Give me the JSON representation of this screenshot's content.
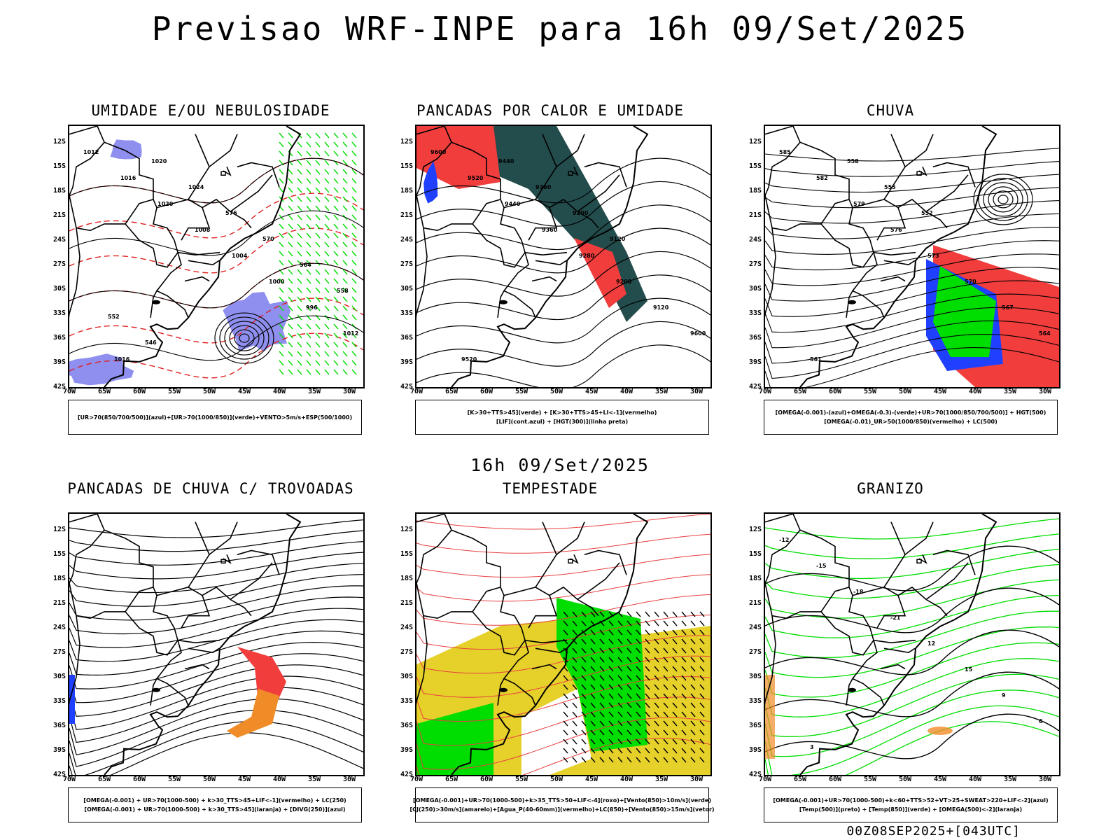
{
  "title": "Previsao WRF-INPE  para 16h 09/Set/2025",
  "mid_date": "16h 09/Set/2025",
  "footer": "00Z08SEP2025+[043UTC]",
  "lat_labels": [
    "12S",
    "15S",
    "18S",
    "21S",
    "24S",
    "27S",
    "30S",
    "33S",
    "36S",
    "39S",
    "42S"
  ],
  "lon_labels": [
    "70W",
    "65W",
    "60W",
    "55W",
    "50W",
    "45W",
    "40W",
    "35W",
    "30W"
  ],
  "colors": {
    "blue": "#8f8fef",
    "green": "#00dd00",
    "red": "#f23d3d",
    "darkgreen": "#234c4c",
    "yellow": "#e6d02a",
    "orange": "#f08c28",
    "darkblue": "#2040ff"
  },
  "panels": [
    {
      "id": "umidade",
      "title": "UMIDADE E/OU NEBULOSIDADE",
      "legend": [
        "[UR>70(850/700/500)](azul)+[UR>70(1000/850)](verde)+VENTO>5m/s+ESP(500/1000)"
      ],
      "contour_labels": [
        "1012",
        "1016",
        "1020",
        "1008",
        "1004",
        "1000",
        "996",
        "1012",
        "1016",
        "1020",
        "1024",
        "576",
        "570",
        "564",
        "558",
        "552",
        "546"
      ]
    },
    {
      "id": "pancadas_calor",
      "title": "PANCADAS POR CALOR E UMIDADE",
      "legend": [
        "[K>30+TTS>45](verde) + [K>30+TTS>45+LI<-1](vermelho)",
        "[LIF](cont.azul) + [HGT(300)](linha preta)"
      ],
      "contour_labels": [
        "9600",
        "9520",
        "9440",
        "9360",
        "9280",
        "9200",
        "9120",
        "9600",
        "9520",
        "9440",
        "9360",
        "9200",
        "9120"
      ]
    },
    {
      "id": "chuva",
      "title": "CHUVA",
      "legend": [
        "[OMEGA(-0.001)-(azul)+OMEGA(-0.3)-(verde)+UR>70(1000/850/700/500)] + HGT(500)",
        "[OMEGA(-0.01)_UR>50(1000/850)(vermelho) + LC(500)"
      ],
      "contour_labels": [
        "585",
        "582",
        "579",
        "576",
        "573",
        "570",
        "567",
        "564",
        "561",
        "558",
        "555",
        "552"
      ]
    },
    {
      "id": "pancadas_trovoadas",
      "title": "PANCADAS DE CHUVA C/ TROVOADAS",
      "legend": [
        "[OMEGA(-0.001) + UR>70(1000-500) + k>30_TTS>45+LIF<-1](vermelho) + LC(250)",
        "[OMEGA(-0.001) + UR>70(1000-500) + k>30_TTS>45](laranja) + [DIVG(250)](azul)"
      ],
      "contour_labels": []
    },
    {
      "id": "tempestade",
      "title": "TEMPESTADE",
      "legend": [
        "[OMEGA(-0.001)+UR>70(1000-500)+k>35_TTS>50+LIF<-4](roxo)+[Vento(850)>10m/s](verde)",
        "[CJ(250)>30m/s](amarelo)+[Agua_P(40-60mm)](vermelho)+LC(850)+[Vento(850)>15m/s](vetor)"
      ],
      "contour_labels": []
    },
    {
      "id": "granizo",
      "title": "GRANIZO",
      "legend": [
        "[OMEGA(-0.001)+UR>70(1000-500)+k<60+TTS>52+VT>25+SWEAT>220+LIF<-2](azul)",
        "[Temp(500)](preto) + [Temp(850)](verde) + [OMEGA(500)<-2](laranja)"
      ],
      "contour_labels": [
        "-12",
        "-15",
        "-18",
        "-21",
        "12",
        "15",
        "9",
        "6",
        "3"
      ]
    }
  ]
}
